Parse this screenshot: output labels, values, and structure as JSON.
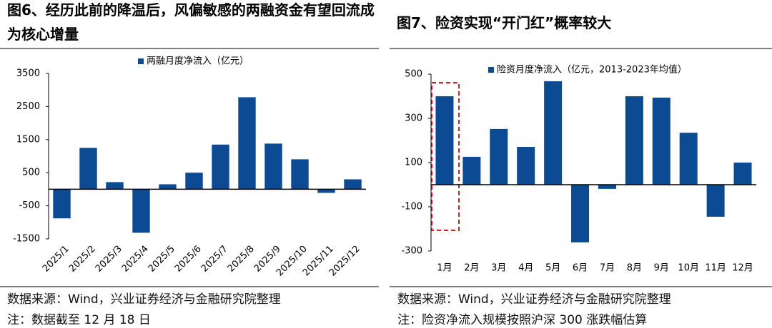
{
  "chart_data": [
    {
      "type": "bar",
      "title": "图6、经历此前的降温后，风偏敏感的两融资金有望回流成为核心增量",
      "categories": [
        "2025/1",
        "2025/2",
        "2025/3",
        "2025/4",
        "2025/5",
        "2025/6",
        "2025/7",
        "2025/8",
        "2025/9",
        "2025/10",
        "2025/11",
        "2025/12"
      ],
      "series": [
        {
          "name": "两融月度净流入（亿元）",
          "color": "#0d4a94",
          "values": [
            -880,
            1250,
            215,
            -1315,
            150,
            500,
            1350,
            2780,
            1380,
            905,
            -110,
            300
          ]
        }
      ],
      "ylim": [
        -1500,
        3500
      ],
      "yticks": [
        3500,
        2500,
        1500,
        500,
        -500,
        -1500
      ],
      "source": "数据来源：Wind，兴业证券经济与金融研究院整理",
      "note": "注：数据截至 12 月 18 日"
    },
    {
      "type": "bar",
      "title": "图7、险资实现“开门红”概率较大",
      "categories": [
        "1月",
        "2月",
        "3月",
        "4月",
        "5月",
        "6月",
        "7月",
        "8月",
        "9月",
        "10月",
        "11月",
        "12月"
      ],
      "series": [
        {
          "name": "险资月度净流入（亿元，2013-2023年均值）",
          "color": "#0d4a94",
          "values": [
            400,
            126,
            252,
            171,
            468,
            -261,
            -19,
            400,
            394,
            235,
            -145,
            100
          ]
        }
      ],
      "ylim": [
        -300,
        500
      ],
      "yticks": [
        500,
        300,
        100,
        -100,
        -300
      ],
      "source": "数据来源：Wind，兴业证券经济与金融研究院整理",
      "note": "注：险资净流入规模按照沪深 300 涨跌幅估算"
    }
  ]
}
